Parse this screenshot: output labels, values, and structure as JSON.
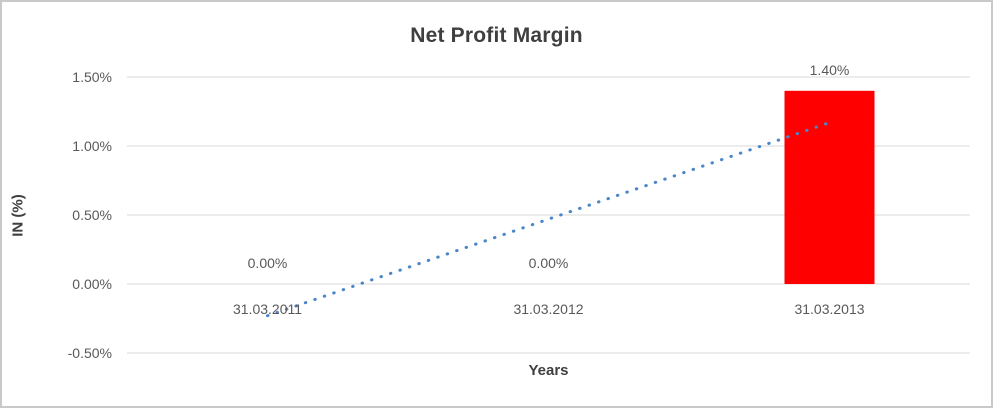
{
  "chart_data": {
    "type": "bar",
    "title": "Net Profit Margin",
    "xlabel": "Years",
    "ylabel": "IN (%)",
    "categories": [
      "31.03.2011",
      "31.03.2012",
      "31.03.2013"
    ],
    "values": [
      0.0,
      0.0,
      1.4
    ],
    "data_labels": [
      "0.00%",
      "0.00%",
      "1.40%"
    ],
    "y_ticks": [
      -0.5,
      0.0,
      0.5,
      1.0,
      1.5
    ],
    "y_tick_labels": [
      "-0.50%",
      "0.00%",
      "0.50%",
      "1.00%",
      "1.50%"
    ],
    "ylim": [
      -0.5,
      1.5
    ],
    "grid": true,
    "legend_position": "none",
    "bar_color": "#ff0000",
    "gridline_color": "#d9d9d9",
    "text_color": "#595959",
    "trendline": {
      "style": "dotted",
      "color": "#4a86c8",
      "points": [
        {
          "category_index": 0,
          "value": -0.23
        },
        {
          "category_index": 2,
          "value": 1.17
        }
      ]
    }
  }
}
